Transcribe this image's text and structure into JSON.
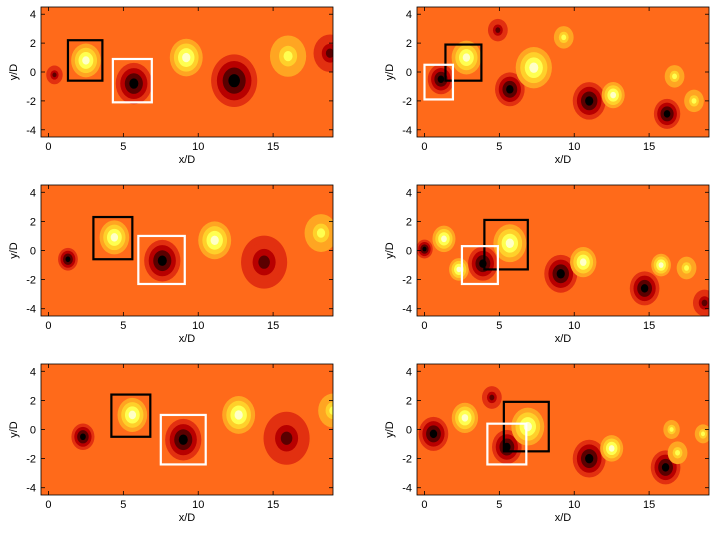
{
  "figure": {
    "palette": {
      "background": "#ff6a1a",
      "hot_ramp": [
        "#ffffc8",
        "#ffff50",
        "#ffd02a",
        "#ffa522"
      ],
      "cold_ramp": [
        "#000000",
        "#5a0000",
        "#b80000",
        "#e23010"
      ]
    },
    "box_colors": {
      "black": "#000000",
      "white": "#ffffff"
    }
  },
  "chart_data": [
    {
      "type": "heatmap",
      "xlabel": "x/D",
      "ylabel": "y/D",
      "xlim": [
        -0.5,
        19
      ],
      "ylim": [
        -4.5,
        4.5
      ],
      "xticks": [
        0,
        5,
        10,
        15
      ],
      "yticks": [
        4,
        2,
        0,
        -2,
        -4
      ],
      "blobs": [
        {
          "x": 2.5,
          "y": 0.8,
          "sign": 1,
          "strength": 1.0,
          "size": 0.9
        },
        {
          "x": 5.7,
          "y": -0.8,
          "sign": -1,
          "strength": 1.0,
          "size": 1.1
        },
        {
          "x": 9.2,
          "y": 1.0,
          "sign": 1,
          "strength": 0.8,
          "size": 1.0
        },
        {
          "x": 12.4,
          "y": -0.6,
          "sign": -1,
          "strength": 0.7,
          "size": 1.4
        },
        {
          "x": 16.0,
          "y": 1.1,
          "sign": 1,
          "strength": 0.65,
          "size": 1.1
        },
        {
          "x": 18.8,
          "y": 1.3,
          "sign": -1,
          "strength": 0.5,
          "size": 1.0
        },
        {
          "x": 0.4,
          "y": -0.2,
          "sign": -1,
          "strength": 0.5,
          "size": 0.5
        }
      ],
      "boxes": [
        {
          "color": "black",
          "x": [
            1.3,
            3.6
          ],
          "y": [
            -0.6,
            2.2
          ]
        },
        {
          "color": "white",
          "x": [
            4.3,
            6.9
          ],
          "y": [
            -2.1,
            0.9
          ]
        }
      ]
    },
    {
      "type": "heatmap",
      "xlabel": "x/D",
      "ylabel": "y/D",
      "xlim": [
        -0.5,
        19
      ],
      "ylim": [
        -4.5,
        4.5
      ],
      "xticks": [
        0,
        5,
        10,
        15
      ],
      "yticks": [
        4,
        2,
        0,
        -2,
        -4
      ],
      "blobs": [
        {
          "x": 1.1,
          "y": -0.5,
          "sign": -1,
          "strength": 1.0,
          "size": 0.8
        },
        {
          "x": 2.8,
          "y": 1.0,
          "sign": 1,
          "strength": 1.0,
          "size": 0.9
        },
        {
          "x": 5.7,
          "y": -1.2,
          "sign": -1,
          "strength": 1.0,
          "size": 0.9
        },
        {
          "x": 7.3,
          "y": 0.3,
          "sign": 1,
          "strength": 0.9,
          "size": 1.1
        },
        {
          "x": 11.0,
          "y": -2.0,
          "sign": -1,
          "strength": 1.0,
          "size": 1.0
        },
        {
          "x": 12.6,
          "y": -1.6,
          "sign": 1,
          "strength": 0.8,
          "size": 0.7
        },
        {
          "x": 16.2,
          "y": -2.9,
          "sign": -1,
          "strength": 0.9,
          "size": 0.8
        },
        {
          "x": 16.7,
          "y": -0.3,
          "sign": 1,
          "strength": 0.6,
          "size": 0.6
        },
        {
          "x": 18.0,
          "y": -2.0,
          "sign": 1,
          "strength": 0.6,
          "size": 0.6
        },
        {
          "x": 4.9,
          "y": 2.9,
          "sign": -1,
          "strength": 0.5,
          "size": 0.6
        },
        {
          "x": 9.3,
          "y": 2.4,
          "sign": 1,
          "strength": 0.4,
          "size": 0.6
        }
      ],
      "boxes": [
        {
          "color": "black",
          "x": [
            1.4,
            3.8
          ],
          "y": [
            -0.6,
            1.9
          ]
        },
        {
          "color": "white",
          "x": [
            0.0,
            1.9
          ],
          "y": [
            -1.9,
            0.5
          ]
        }
      ]
    },
    {
      "type": "heatmap",
      "xlabel": "x/D",
      "ylabel": "y/D",
      "xlim": [
        -0.5,
        19
      ],
      "ylim": [
        -4.5,
        4.5
      ],
      "xticks": [
        0,
        5,
        10,
        15
      ],
      "yticks": [
        4,
        2,
        0,
        -2,
        -4
      ],
      "blobs": [
        {
          "x": 1.3,
          "y": -0.6,
          "sign": -1,
          "strength": 0.9,
          "size": 0.6
        },
        {
          "x": 4.4,
          "y": 0.9,
          "sign": 1,
          "strength": 1.0,
          "size": 0.9
        },
        {
          "x": 7.6,
          "y": -0.7,
          "sign": -1,
          "strength": 1.0,
          "size": 1.1
        },
        {
          "x": 11.1,
          "y": 0.7,
          "sign": 1,
          "strength": 0.8,
          "size": 1.0
        },
        {
          "x": 14.4,
          "y": -0.8,
          "sign": -1,
          "strength": 0.65,
          "size": 1.4
        },
        {
          "x": 18.2,
          "y": 1.2,
          "sign": 1,
          "strength": 0.55,
          "size": 1.0
        }
      ],
      "boxes": [
        {
          "color": "black",
          "x": [
            3.0,
            5.6
          ],
          "y": [
            -0.6,
            2.3
          ]
        },
        {
          "color": "white",
          "x": [
            6.0,
            9.1
          ],
          "y": [
            -2.3,
            1.0
          ]
        }
      ]
    },
    {
      "type": "heatmap",
      "xlabel": "x/D",
      "ylabel": "y/D",
      "xlim": [
        -0.5,
        19
      ],
      "ylim": [
        -4.5,
        4.5
      ],
      "xticks": [
        0,
        5,
        10,
        15
      ],
      "yticks": [
        4,
        2,
        0,
        -2,
        -4
      ],
      "blobs": [
        {
          "x": 1.3,
          "y": 0.8,
          "sign": 1,
          "strength": 0.9,
          "size": 0.7
        },
        {
          "x": 2.3,
          "y": -1.3,
          "sign": 1,
          "strength": 0.7,
          "size": 0.6
        },
        {
          "x": 3.9,
          "y": -0.9,
          "sign": -1,
          "strength": 1.0,
          "size": 0.9
        },
        {
          "x": 5.7,
          "y": 0.5,
          "sign": 1,
          "strength": 1.0,
          "size": 1.0
        },
        {
          "x": 9.1,
          "y": -1.6,
          "sign": -1,
          "strength": 1.0,
          "size": 1.0
        },
        {
          "x": 10.6,
          "y": -0.8,
          "sign": 1,
          "strength": 0.8,
          "size": 0.8
        },
        {
          "x": 14.7,
          "y": -2.6,
          "sign": -1,
          "strength": 0.7,
          "size": 0.9
        },
        {
          "x": 15.8,
          "y": -1.0,
          "sign": 1,
          "strength": 0.7,
          "size": 0.6
        },
        {
          "x": 17.5,
          "y": -1.2,
          "sign": 1,
          "strength": 0.6,
          "size": 0.6
        },
        {
          "x": 18.7,
          "y": -3.6,
          "sign": -1,
          "strength": 0.6,
          "size": 0.7
        },
        {
          "x": 0.0,
          "y": 0.1,
          "sign": -1,
          "strength": 0.7,
          "size": 0.5
        }
      ],
      "boxes": [
        {
          "color": "black",
          "x": [
            4.0,
            6.9
          ],
          "y": [
            -1.3,
            2.1
          ]
        },
        {
          "color": "white",
          "x": [
            2.5,
            4.9
          ],
          "y": [
            -2.3,
            0.3
          ]
        }
      ]
    },
    {
      "type": "heatmap",
      "xlabel": "x/D",
      "ylabel": "y/D",
      "xlim": [
        -0.5,
        19
      ],
      "ylim": [
        -4.5,
        4.5
      ],
      "xticks": [
        0,
        5,
        10,
        15
      ],
      "yticks": [
        4,
        2,
        0,
        -2,
        -4
      ],
      "blobs": [
        {
          "x": 2.3,
          "y": -0.5,
          "sign": -1,
          "strength": 0.9,
          "size": 0.7
        },
        {
          "x": 5.6,
          "y": 1.0,
          "sign": 1,
          "strength": 1.0,
          "size": 0.9
        },
        {
          "x": 9.0,
          "y": -0.7,
          "sign": -1,
          "strength": 1.0,
          "size": 1.1
        },
        {
          "x": 12.7,
          "y": 1.0,
          "sign": 1,
          "strength": 0.7,
          "size": 1.0
        },
        {
          "x": 15.9,
          "y": -0.6,
          "sign": -1,
          "strength": 0.6,
          "size": 1.4
        },
        {
          "x": 19.0,
          "y": 1.3,
          "sign": 1,
          "strength": 0.5,
          "size": 0.9
        }
      ],
      "boxes": [
        {
          "color": "black",
          "x": [
            4.2,
            6.8
          ],
          "y": [
            -0.5,
            2.4
          ]
        },
        {
          "color": "white",
          "x": [
            7.5,
            10.5
          ],
          "y": [
            -2.4,
            1.0
          ]
        }
      ]
    },
    {
      "type": "heatmap",
      "xlabel": "x/D",
      "ylabel": "y/D",
      "xlim": [
        -0.5,
        19
      ],
      "ylim": [
        -4.5,
        4.5
      ],
      "xticks": [
        0,
        5,
        10,
        15
      ],
      "yticks": [
        4,
        2,
        0,
        -2,
        -4
      ],
      "blobs": [
        {
          "x": 0.6,
          "y": -0.3,
          "sign": -1,
          "strength": 1.0,
          "size": 0.9
        },
        {
          "x": 2.7,
          "y": 0.8,
          "sign": 1,
          "strength": 0.9,
          "size": 0.8
        },
        {
          "x": 5.5,
          "y": -1.2,
          "sign": -1,
          "strength": 1.0,
          "size": 0.9
        },
        {
          "x": 6.9,
          "y": 0.2,
          "sign": 1,
          "strength": 1.0,
          "size": 1.0
        },
        {
          "x": 11.0,
          "y": -2.0,
          "sign": -1,
          "strength": 1.0,
          "size": 1.0
        },
        {
          "x": 12.5,
          "y": -1.3,
          "sign": 1,
          "strength": 0.8,
          "size": 0.7
        },
        {
          "x": 16.1,
          "y": -2.6,
          "sign": -1,
          "strength": 0.9,
          "size": 0.9
        },
        {
          "x": 16.9,
          "y": -1.6,
          "sign": 1,
          "strength": 0.6,
          "size": 0.6
        },
        {
          "x": 18.6,
          "y": -0.3,
          "sign": 1,
          "strength": 0.5,
          "size": 0.5
        },
        {
          "x": 4.5,
          "y": 2.2,
          "sign": -1,
          "strength": 0.5,
          "size": 0.6
        },
        {
          "x": 16.5,
          "y": 0.0,
          "sign": 1,
          "strength": 0.6,
          "size": 0.5
        }
      ],
      "boxes": [
        {
          "color": "black",
          "x": [
            5.3,
            8.3
          ],
          "y": [
            -1.5,
            1.9
          ]
        },
        {
          "color": "white",
          "x": [
            4.2,
            6.8
          ],
          "y": [
            -2.4,
            0.4
          ]
        }
      ]
    }
  ]
}
